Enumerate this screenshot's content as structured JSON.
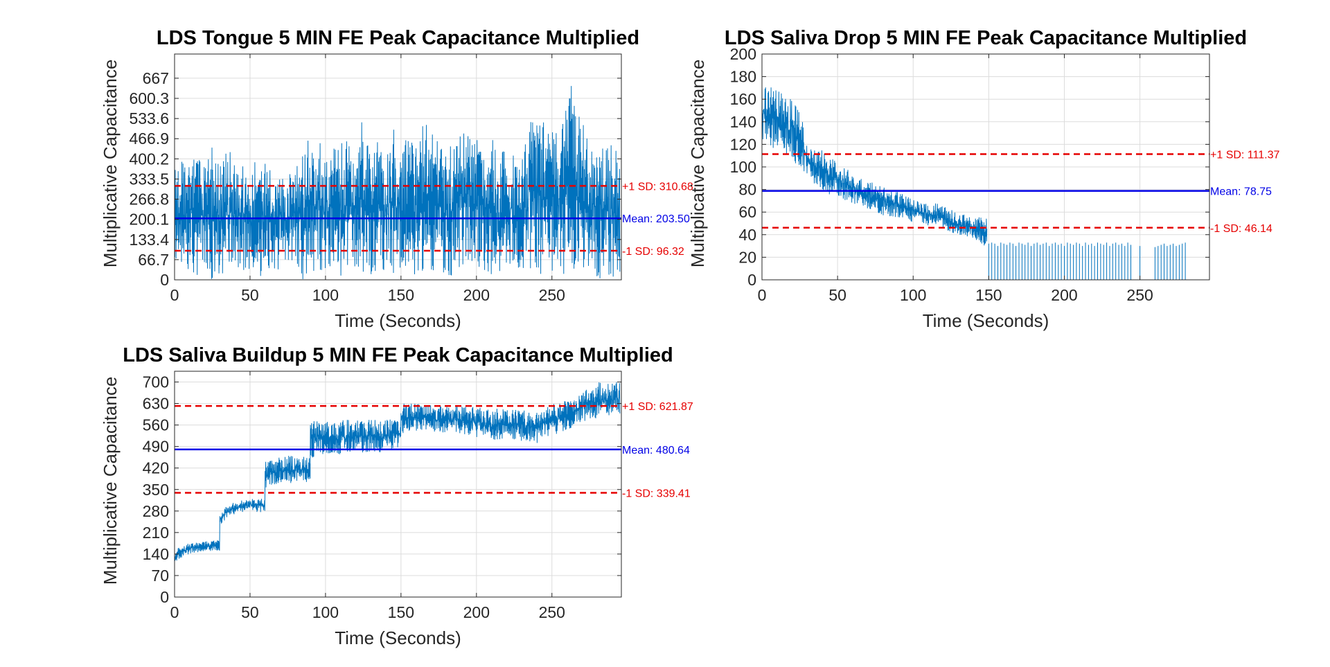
{
  "colors": {
    "signal": "#0072BD",
    "mean": "#0000E6",
    "sd": "#E60000",
    "grid": "#DCDCDC",
    "axis": "#262626"
  },
  "chart_data": [
    {
      "type": "line",
      "title": "LDS Tongue 5 MIN FE Peak Capacitance Multiplied",
      "xlabel": "Time (Seconds)",
      "ylabel": "Multiplicative Capacitance",
      "xlim": [
        0,
        296
      ],
      "ylim": [
        0,
        747
      ],
      "xticks": [
        0,
        50,
        100,
        150,
        200,
        250
      ],
      "yticks": [
        0,
        66.7,
        133.4,
        200.1,
        266.8,
        333.5,
        400.2,
        466.9,
        533.6,
        600.3,
        667
      ],
      "grid": true,
      "series": [
        {
          "style": "noisy-line",
          "x": [
            0,
            5,
            10,
            15,
            20,
            25,
            30,
            35,
            40,
            45,
            50,
            55,
            60,
            65,
            70,
            75,
            80,
            85,
            90,
            95,
            100,
            105,
            110,
            115,
            120,
            125,
            130,
            135,
            140,
            145,
            150,
            155,
            160,
            165,
            170,
            175,
            180,
            185,
            190,
            195,
            200,
            205,
            210,
            215,
            220,
            225,
            230,
            235,
            240,
            245,
            250,
            255,
            260,
            265,
            270,
            275,
            280,
            285,
            290,
            295
          ],
          "low": [
            40,
            50,
            30,
            10,
            20,
            0,
            0,
            30,
            40,
            30,
            0,
            20,
            0,
            40,
            20,
            60,
            50,
            0,
            10,
            30,
            20,
            60,
            0,
            20,
            30,
            0,
            10,
            40,
            20,
            0,
            0,
            0,
            20,
            30,
            10,
            30,
            0,
            20,
            40,
            30,
            60,
            0,
            0,
            0,
            20,
            10,
            40,
            30,
            40,
            0,
            10,
            0,
            20,
            30,
            0,
            10,
            0,
            0,
            0,
            0
          ],
          "high": [
            370,
            420,
            400,
            430,
            380,
            440,
            390,
            430,
            410,
            390,
            380,
            400,
            420,
            360,
            380,
            350,
            370,
            420,
            490,
            460,
            460,
            440,
            450,
            480,
            420,
            560,
            500,
            480,
            420,
            510,
            460,
            470,
            440,
            520,
            520,
            470,
            430,
            460,
            530,
            520,
            480,
            460,
            500,
            430,
            480,
            420,
            390,
            520,
            580,
            520,
            490,
            540,
            670,
            620,
            530,
            450,
            480,
            430,
            450,
            440
          ]
        }
      ],
      "mean": 203.5,
      "sd_plus": 310.68,
      "sd_minus": 96.32,
      "annotations": {
        "plus": "+1 SD: 310.68",
        "mean": "Mean: 203.50",
        "minus": "-1 SD: 96.32"
      }
    },
    {
      "type": "line",
      "title": "LDS Saliva Drop 5 MIN FE Peak Capacitance Multiplied",
      "xlabel": "Time (Seconds)",
      "ylabel": "Multiplicative Capacitance",
      "xlim": [
        0,
        296
      ],
      "ylim": [
        0,
        200
      ],
      "xticks": [
        0,
        50,
        100,
        150,
        200,
        250
      ],
      "yticks": [
        0,
        20,
        40,
        60,
        80,
        100,
        120,
        140,
        160,
        180,
        200
      ],
      "grid": true,
      "series": [
        {
          "style": "noisy-line",
          "x": [
            0,
            5,
            10,
            15,
            20,
            25,
            30,
            35,
            40,
            45,
            50,
            55,
            60,
            65,
            70,
            75,
            80,
            85,
            90,
            95,
            100,
            105,
            110,
            115,
            120,
            125,
            130,
            135,
            140,
            145,
            149
          ],
          "low": [
            120,
            115,
            115,
            110,
            105,
            100,
            90,
            85,
            80,
            75,
            75,
            70,
            68,
            65,
            62,
            60,
            57,
            55,
            55,
            53,
            50,
            50,
            48,
            45,
            45,
            42,
            40,
            38,
            35,
            30,
            30
          ],
          "high": [
            175,
            172,
            168,
            165,
            160,
            155,
            120,
            115,
            115,
            110,
            105,
            100,
            95,
            90,
            88,
            85,
            82,
            80,
            78,
            75,
            72,
            70,
            70,
            68,
            65,
            62,
            60,
            58,
            58,
            55,
            55
          ]
        },
        {
          "style": "spikes",
          "x": [
            150,
            152,
            154,
            156,
            158,
            160,
            162,
            164,
            166,
            168,
            170,
            172,
            174,
            176,
            178,
            180,
            182,
            184,
            186,
            188,
            190,
            192,
            194,
            196,
            198,
            200,
            202,
            204,
            206,
            208,
            210,
            212,
            214,
            216,
            218,
            220,
            222,
            224,
            226,
            228,
            230,
            232,
            234,
            236,
            238,
            240,
            242,
            244,
            250,
            260,
            262,
            264,
            266,
            268,
            270,
            272,
            274,
            276,
            278,
            280
          ],
          "y": [
            32,
            33,
            32,
            30,
            33,
            32,
            31,
            33,
            32,
            30,
            33,
            32,
            31,
            33,
            30,
            32,
            33,
            31,
            32,
            33,
            30,
            32,
            33,
            31,
            32,
            30,
            33,
            32,
            31,
            33,
            32,
            30,
            33,
            31,
            32,
            30,
            33,
            32,
            31,
            33,
            30,
            32,
            33,
            31,
            32,
            30,
            33,
            31,
            30,
            29,
            30,
            31,
            32,
            30,
            31,
            32,
            30,
            31,
            32,
            33
          ]
        }
      ],
      "mean": 78.75,
      "sd_plus": 111.37,
      "sd_minus": 46.14,
      "annotations": {
        "plus": "+1 SD: 111.37",
        "mean": "Mean: 78.75",
        "minus": "-1 SD: 46.14"
      }
    },
    {
      "type": "line",
      "title": "LDS Saliva Buildup 5 MIN FE Peak Capacitance Multiplied",
      "xlabel": "Time (Seconds)",
      "ylabel": "Multiplicative Capacitance",
      "xlim": [
        0,
        296
      ],
      "ylim": [
        0,
        735
      ],
      "xticks": [
        0,
        50,
        100,
        150,
        200,
        250
      ],
      "yticks": [
        0,
        70,
        140,
        210,
        280,
        350,
        420,
        490,
        560,
        630,
        700
      ],
      "grid": true,
      "series": [
        {
          "style": "noisy-line",
          "x": [
            0,
            5,
            10,
            15,
            20,
            25,
            29.9,
            30,
            35,
            40,
            45,
            50,
            55,
            59.9,
            60,
            65,
            70,
            75,
            80,
            85,
            89.9,
            90,
            95,
            100,
            105,
            110,
            115,
            120,
            125,
            130,
            135,
            140,
            145,
            149.9,
            150,
            155,
            160,
            165,
            170,
            175,
            180,
            185,
            190,
            195,
            200,
            205,
            210,
            215,
            220,
            225,
            230,
            235,
            240,
            245,
            250,
            255,
            260,
            265,
            270,
            275,
            280,
            285,
            290,
            295
          ],
          "low": [
            110,
            130,
            140,
            145,
            150,
            150,
            150,
            230,
            260,
            270,
            275,
            280,
            275,
            275,
            350,
            365,
            370,
            370,
            370,
            375,
            370,
            450,
            460,
            465,
            460,
            465,
            465,
            470,
            470,
            470,
            470,
            470,
            475,
            475,
            530,
            540,
            540,
            545,
            540,
            535,
            535,
            540,
            530,
            525,
            520,
            515,
            510,
            510,
            515,
            510,
            505,
            505,
            500,
            515,
            525,
            535,
            545,
            555,
            570,
            580,
            580,
            585,
            590,
            590
          ],
          "high": [
            150,
            170,
            175,
            180,
            180,
            185,
            185,
            280,
            300,
            310,
            315,
            320,
            320,
            320,
            440,
            450,
            455,
            460,
            460,
            460,
            455,
            580,
            575,
            570,
            575,
            575,
            580,
            575,
            580,
            580,
            575,
            580,
            580,
            580,
            640,
            630,
            630,
            625,
            625,
            625,
            620,
            620,
            625,
            620,
            620,
            615,
            610,
            615,
            610,
            615,
            610,
            605,
            600,
            620,
            630,
            635,
            640,
            650,
            670,
            690,
            700,
            700,
            700,
            700
          ]
        }
      ],
      "mean": 480.64,
      "sd_plus": 621.87,
      "sd_minus": 339.41,
      "annotations": {
        "plus": "+1 SD: 621.87",
        "mean": "Mean: 480.64",
        "minus": "-1 SD: 339.41"
      }
    }
  ]
}
